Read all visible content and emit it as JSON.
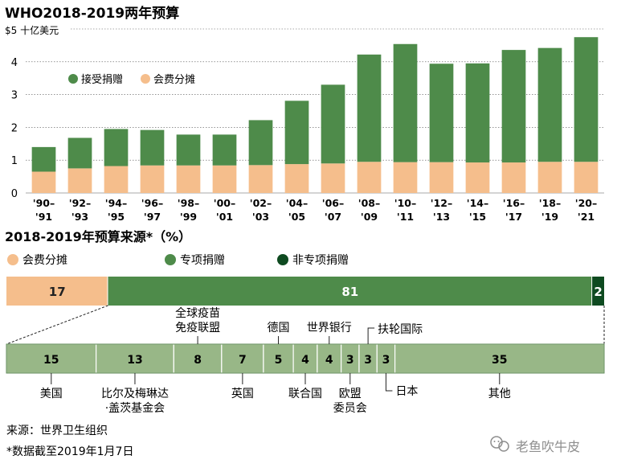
{
  "title": "WHO2018-2019两年预算",
  "colors": {
    "assessed": "#F5BE8C",
    "voluntary": "#4E8B4A",
    "core": "#0E4A20",
    "breakdown": "#98B787",
    "breakdown_border": "#5F8A57",
    "watermark": "#8E8E8E"
  },
  "chart_data": [
    {
      "type": "bar",
      "stacked": true,
      "title": "WHO2018-2019两年预算",
      "ylabel": "$5 十亿美元",
      "ylim": [
        0,
        5
      ],
      "yticks": [
        "0",
        "1",
        "2",
        "3",
        "4"
      ],
      "grid": true,
      "legend_position": "top-left",
      "categories": [
        [
          "'90–",
          "'91"
        ],
        [
          "'92–",
          "'93"
        ],
        [
          "'94–",
          "'95"
        ],
        [
          "'96–",
          "'97"
        ],
        [
          "'98–",
          "'99"
        ],
        [
          "'00–",
          "'01"
        ],
        [
          "'02–",
          "'03"
        ],
        [
          "'04–",
          "'05"
        ],
        [
          "'06–",
          "'07"
        ],
        [
          "'08–",
          "'09"
        ],
        [
          "'10–",
          "'11"
        ],
        [
          "'12–",
          "'13"
        ],
        [
          "'14–",
          "'15"
        ],
        [
          "'16–",
          "'17"
        ],
        [
          "'18–",
          "'19"
        ],
        [
          "'20–",
          "'21"
        ]
      ],
      "series": [
        {
          "name": "会费分摊",
          "color": "#F5BE8C",
          "values": [
            0.65,
            0.75,
            0.82,
            0.84,
            0.84,
            0.84,
            0.85,
            0.88,
            0.9,
            0.95,
            0.94,
            0.94,
            0.93,
            0.93,
            0.95,
            0.95
          ]
        },
        {
          "name": "接受捐赠",
          "color": "#4E8B4A",
          "values": [
            0.75,
            0.93,
            1.13,
            1.08,
            0.94,
            0.94,
            1.37,
            1.93,
            2.4,
            3.27,
            3.6,
            3.0,
            3.02,
            3.43,
            3.47,
            3.8
          ]
        }
      ]
    },
    {
      "type": "bar",
      "orientation": "horizontal",
      "stacked": true,
      "title": "2018-2019年预算来源*（%）",
      "legend": [
        {
          "name": "会费分摊",
          "color": "#F5BE8C"
        },
        {
          "name": "专项捐赠",
          "color": "#4E8B4A"
        },
        {
          "name": "非专项捐赠",
          "color": "#0E4A20"
        }
      ],
      "segments": [
        {
          "name": "会费分摊",
          "value": 17,
          "label": "17"
        },
        {
          "name": "专项捐赠",
          "value": 81,
          "label": "81"
        },
        {
          "name": "非专项捐赠",
          "value": 2,
          "label": "2"
        }
      ]
    },
    {
      "type": "bar",
      "orientation": "horizontal",
      "stacked": true,
      "segments": [
        {
          "value": 15,
          "label": "15",
          "name": [
            "美国"
          ]
        },
        {
          "value": 13,
          "label": "13",
          "name": [
            "比尔及梅琳达",
            "·盖茨基金会"
          ]
        },
        {
          "value": 8,
          "label": "8",
          "name": [
            "全球疫苗",
            "免疫联盟"
          ]
        },
        {
          "value": 7,
          "label": "7",
          "name": [
            "英国"
          ]
        },
        {
          "value": 5,
          "label": "5",
          "name": [
            "德国"
          ]
        },
        {
          "value": 4,
          "label": "4",
          "name": [
            "联合国"
          ]
        },
        {
          "value": 4,
          "label": "4",
          "name": [
            "世界银行"
          ]
        },
        {
          "value": 3,
          "label": "3",
          "name": [
            "欧盟",
            "委员会"
          ]
        },
        {
          "value": 3,
          "label": "3",
          "name": [
            "扶轮国际"
          ]
        },
        {
          "value": 3,
          "label": "3",
          "name": [
            "日本"
          ]
        },
        {
          "value": 35,
          "label": "35",
          "name": [
            "其他"
          ]
        }
      ]
    }
  ],
  "footnotes": {
    "source": "来源：世界卫生组织",
    "date_note": "*数据截至2019年1月7日"
  },
  "watermark": "老鱼吹牛皮"
}
